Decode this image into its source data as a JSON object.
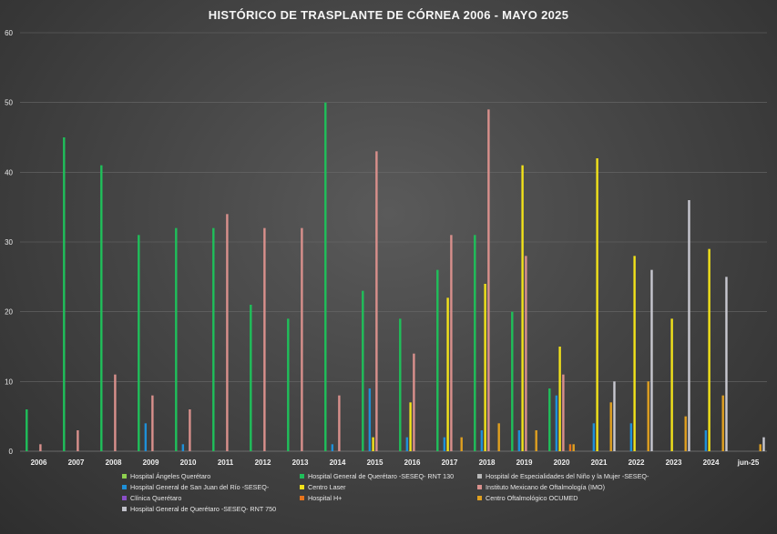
{
  "chart_data": {
    "type": "bar",
    "title": "HISTÓRICO DE TRASPLANTE DE CÓRNEA 2006 - MAYO 2025",
    "categories": [
      "2006",
      "2007",
      "2008",
      "2009",
      "2010",
      "2011",
      "2012",
      "2013",
      "2014",
      "2015",
      "2016",
      "2017",
      "2018",
      "2019",
      "2020",
      "2021",
      "2022",
      "2023",
      "2024",
      "jun-25"
    ],
    "ylim": [
      0,
      60
    ],
    "yticks": [
      0,
      10,
      20,
      30,
      40,
      50,
      60
    ],
    "grid": true,
    "legend_position": "bottom",
    "series": [
      {
        "name": "Hospital Ángeles Querétaro",
        "color": "#8fd14f",
        "values": [
          0,
          0,
          0,
          0,
          0,
          0,
          0,
          0,
          0,
          0,
          0,
          0,
          0,
          0,
          0,
          0,
          0,
          0,
          0,
          0
        ]
      },
      {
        "name": "Hospital General de Querétaro -SESEQ- RNT 130",
        "color": "#1fbf5a",
        "values": [
          6,
          45,
          41,
          31,
          32,
          32,
          21,
          19,
          50,
          23,
          19,
          26,
          31,
          20,
          9,
          0,
          0,
          0,
          0,
          0
        ]
      },
      {
        "name": "Hospital de Especialidades del Niño y la Mujer -SESEQ-",
        "color": "#b8b8b8",
        "values": [
          0,
          0,
          0,
          0,
          0,
          0,
          0,
          0,
          0,
          0,
          0,
          0,
          0,
          0,
          0,
          0,
          0,
          0,
          0,
          0
        ]
      },
      {
        "name": "Hospital General de San Juan del Río -SESEQ-",
        "color": "#1e90d8",
        "values": [
          0,
          0,
          0,
          4,
          1,
          0,
          0,
          0,
          1,
          9,
          2,
          2,
          3,
          3,
          8,
          4,
          4,
          0,
          3,
          0
        ]
      },
      {
        "name": "Centro Laser",
        "color": "#f2e21a",
        "values": [
          0,
          0,
          0,
          0,
          0,
          0,
          0,
          0,
          0,
          2,
          7,
          22,
          24,
          41,
          15,
          42,
          28,
          19,
          29,
          0
        ]
      },
      {
        "name": "Instituto Mexicano de Oftalmología (IMO)",
        "color": "#d9908c",
        "values": [
          1,
          3,
          11,
          8,
          6,
          34,
          32,
          32,
          8,
          43,
          14,
          31,
          49,
          28,
          11,
          0,
          0,
          0,
          0,
          0
        ]
      },
      {
        "name": "Clínica Querétaro",
        "color": "#8a4fc7",
        "values": [
          0,
          0,
          0,
          0,
          0,
          0,
          0,
          0,
          0,
          0,
          0,
          0,
          0,
          0,
          0,
          0,
          0,
          0,
          0,
          0
        ]
      },
      {
        "name": "Hospital H+",
        "color": "#e8741c",
        "values": [
          0,
          0,
          0,
          0,
          0,
          0,
          0,
          0,
          0,
          0,
          0,
          0,
          0,
          0,
          1,
          0,
          0,
          0,
          0,
          0
        ]
      },
      {
        "name": "Centro Oftalmológico OCUMED",
        "color": "#e0a020",
        "values": [
          0,
          0,
          0,
          0,
          0,
          0,
          0,
          0,
          0,
          0,
          0,
          2,
          4,
          3,
          1,
          7,
          10,
          5,
          8,
          1
        ]
      },
      {
        "name": "Hospital General de Querétaro -SESEQ- RNT 750",
        "color": "#c0c0c8",
        "values": [
          0,
          0,
          0,
          0,
          0,
          0,
          0,
          0,
          0,
          0,
          0,
          0,
          0,
          0,
          0,
          1,
          0,
          0,
          0,
          0
        ]
      }
    ],
    "extra_series_2": {
      "note_series": "Hospital General de Querétaro -SESEQ- RNT 750 (light bars)",
      "values": [
        0,
        0,
        0,
        0,
        0,
        0,
        0,
        0,
        0,
        0,
        0,
        0,
        0,
        0,
        0,
        10,
        26,
        36,
        25,
        2
      ]
    }
  }
}
